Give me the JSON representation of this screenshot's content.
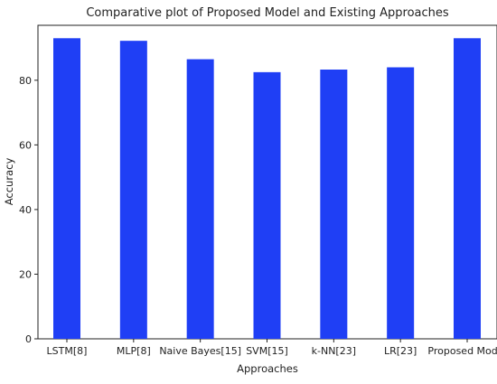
{
  "chart_data": {
    "type": "bar",
    "title": "Comparative plot of Proposed Model and Existing Approaches",
    "xlabel": "Approaches",
    "ylabel": "Accuracy",
    "categories": [
      "LSTM[8]",
      "MLP[8]",
      "Naive Bayes[15]",
      "SVM[15]",
      "k-NN[23]",
      "LR[23]",
      "Proposed Model"
    ],
    "values": [
      93,
      92.2,
      86.5,
      82.5,
      83.3,
      84,
      93
    ],
    "ylim": [
      0,
      97
    ],
    "yticks": [
      0,
      20,
      40,
      60,
      80
    ],
    "grid": false,
    "legend": "none",
    "bar_color": "#1f3ff5"
  }
}
